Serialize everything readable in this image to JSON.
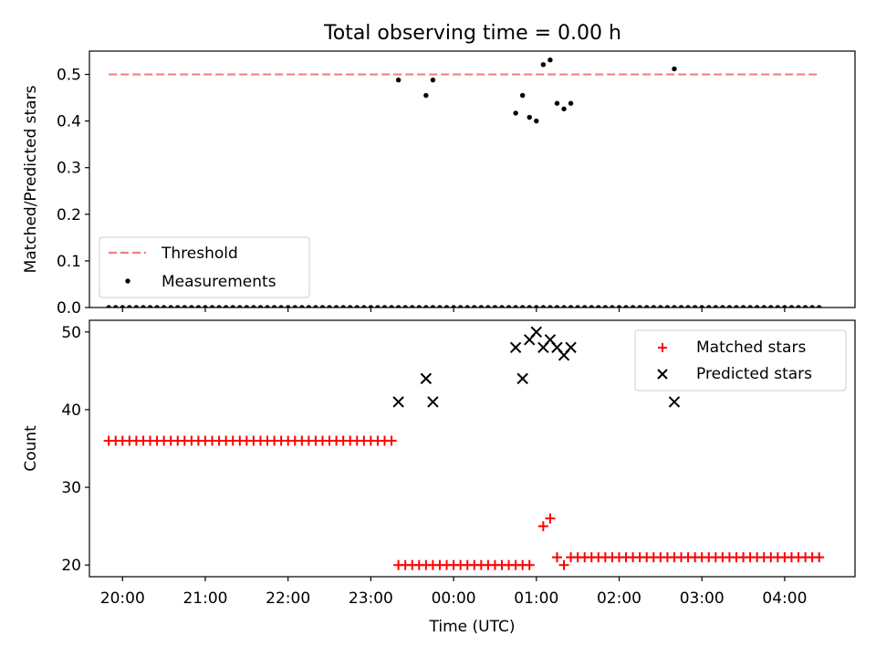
{
  "figure": {
    "title": "Total observing time = 0.00 h"
  },
  "chart_data": [
    {
      "type": "scatter",
      "ylabel": "Matched/Predicted stars",
      "xlabel": "",
      "xlim": [
        "19:36",
        "04:51"
      ],
      "ylim": [
        0.0,
        0.55
      ],
      "yticks": [
        "0.0",
        "0.1",
        "0.2",
        "0.3",
        "0.4",
        "0.5"
      ],
      "grid": false,
      "legend": "lower-left",
      "series": [
        {
          "name": "Threshold",
          "style": "dashed-line",
          "color": "#f08080",
          "x": [
            "19:50",
            "04:25"
          ],
          "y": [
            0.5,
            0.5
          ]
        },
        {
          "name": "Measurements",
          "style": "dot",
          "color": "#000000",
          "x": [
            "19:50",
            "19:55",
            "20:00",
            "20:05",
            "20:10",
            "20:15",
            "20:20",
            "20:25",
            "20:30",
            "20:35",
            "20:40",
            "20:45",
            "20:50",
            "20:55",
            "21:00",
            "21:05",
            "21:10",
            "21:15",
            "21:20",
            "21:25",
            "21:30",
            "21:35",
            "21:40",
            "21:45",
            "21:50",
            "21:55",
            "22:00",
            "22:05",
            "22:10",
            "22:15",
            "22:20",
            "22:25",
            "22:30",
            "22:35",
            "22:40",
            "22:45",
            "22:50",
            "22:55",
            "23:00",
            "23:05",
            "23:10",
            "23:15",
            "23:20",
            "23:25",
            "23:30",
            "23:35",
            "23:40",
            "23:45",
            "23:50",
            "23:55",
            "00:00",
            "00:05",
            "00:10",
            "00:15",
            "00:20",
            "00:25",
            "00:30",
            "00:35",
            "00:40",
            "00:45",
            "00:50",
            "00:55",
            "01:00",
            "01:05",
            "01:10",
            "01:15",
            "01:20",
            "01:25",
            "01:30",
            "01:35",
            "01:40",
            "01:45",
            "01:50",
            "01:55",
            "02:00",
            "02:05",
            "02:10",
            "02:15",
            "02:20",
            "02:25",
            "02:30",
            "02:35",
            "02:40",
            "02:45",
            "02:50",
            "02:55",
            "03:00",
            "03:05",
            "03:10",
            "03:15",
            "03:20",
            "03:25",
            "03:30",
            "03:35",
            "03:40",
            "03:45",
            "03:50",
            "03:55",
            "04:00",
            "04:05",
            "04:10",
            "04:15",
            "04:20",
            "04:25",
            "23:20",
            "23:40",
            "23:45",
            "00:45",
            "00:50",
            "00:55",
            "01:00",
            "01:05",
            "01:10",
            "01:15",
            "01:20",
            "01:25",
            "02:40"
          ],
          "y": [
            0,
            0,
            0,
            0,
            0,
            0,
            0,
            0,
            0,
            0,
            0,
            0,
            0,
            0,
            0,
            0,
            0,
            0,
            0,
            0,
            0,
            0,
            0,
            0,
            0,
            0,
            0,
            0,
            0,
            0,
            0,
            0,
            0,
            0,
            0,
            0,
            0,
            0,
            0,
            0,
            0,
            0,
            0,
            0,
            0,
            0,
            0,
            0,
            0,
            0,
            0,
            0,
            0,
            0,
            0,
            0,
            0,
            0,
            0,
            0,
            0,
            0,
            0,
            0,
            0,
            0,
            0,
            0,
            0,
            0,
            0,
            0,
            0,
            0,
            0,
            0,
            0,
            0,
            0,
            0,
            0,
            0,
            0,
            0,
            0,
            0,
            0,
            0,
            0,
            0,
            0,
            0,
            0,
            0,
            0,
            0,
            0,
            0,
            0,
            0,
            0,
            0,
            0,
            0,
            0.488,
            0.455,
            0.488,
            0.417,
            0.455,
            0.408,
            0.4,
            0.521,
            0.531,
            0.438,
            0.426,
            0.438,
            0.512
          ]
        }
      ]
    },
    {
      "type": "scatter",
      "ylabel": "Count",
      "xlabel": "Time (UTC)",
      "xlim": [
        "19:36",
        "04:51"
      ],
      "ylim": [
        18.5,
        51.5
      ],
      "yticks": [
        "20",
        "30",
        "40",
        "50"
      ],
      "xticks": [
        "20:00",
        "21:00",
        "22:00",
        "23:00",
        "00:00",
        "01:00",
        "02:00",
        "03:00",
        "04:00"
      ],
      "grid": false,
      "legend": "top-right",
      "series": [
        {
          "name": "Matched stars",
          "marker": "plus",
          "color": "#ff0000",
          "x": [
            "19:50",
            "19:55",
            "20:00",
            "20:05",
            "20:10",
            "20:15",
            "20:20",
            "20:25",
            "20:30",
            "20:35",
            "20:40",
            "20:45",
            "20:50",
            "20:55",
            "21:00",
            "21:05",
            "21:10",
            "21:15",
            "21:20",
            "21:25",
            "21:30",
            "21:35",
            "21:40",
            "21:45",
            "21:50",
            "21:55",
            "22:00",
            "22:05",
            "22:10",
            "22:15",
            "22:20",
            "22:25",
            "22:30",
            "22:35",
            "22:40",
            "22:45",
            "22:50",
            "22:55",
            "23:00",
            "23:05",
            "23:10",
            "23:15",
            "23:20",
            "23:25",
            "23:30",
            "23:35",
            "23:40",
            "23:45",
            "23:50",
            "23:55",
            "00:00",
            "00:05",
            "00:10",
            "00:15",
            "00:20",
            "00:25",
            "00:30",
            "00:35",
            "00:40",
            "00:45",
            "00:50",
            "00:55",
            "01:05",
            "01:10",
            "01:15",
            "01:20",
            "01:25",
            "01:30",
            "01:35",
            "01:40",
            "01:45",
            "01:50",
            "01:55",
            "02:00",
            "02:05",
            "02:10",
            "02:15",
            "02:20",
            "02:25",
            "02:30",
            "02:35",
            "02:40",
            "02:45",
            "02:50",
            "02:55",
            "03:00",
            "03:05",
            "03:10",
            "03:15",
            "03:20",
            "03:25",
            "03:30",
            "03:35",
            "03:40",
            "03:45",
            "03:50",
            "03:55",
            "04:00",
            "04:05",
            "04:10",
            "04:15",
            "04:20",
            "04:25"
          ],
          "y": [
            36,
            36,
            36,
            36,
            36,
            36,
            36,
            36,
            36,
            36,
            36,
            36,
            36,
            36,
            36,
            36,
            36,
            36,
            36,
            36,
            36,
            36,
            36,
            36,
            36,
            36,
            36,
            36,
            36,
            36,
            36,
            36,
            36,
            36,
            36,
            36,
            36,
            36,
            36,
            36,
            36,
            36,
            20,
            20,
            20,
            20,
            20,
            20,
            20,
            20,
            20,
            20,
            20,
            20,
            20,
            20,
            20,
            20,
            20,
            20,
            20,
            20,
            25,
            26,
            21,
            20,
            21,
            21,
            21,
            21,
            21,
            21,
            21,
            21,
            21,
            21,
            21,
            21,
            21,
            21,
            21,
            21,
            21,
            21,
            21,
            21,
            21,
            21,
            21,
            21,
            21,
            21,
            21,
            21,
            21,
            21,
            21,
            21,
            21,
            21,
            21,
            21,
            21
          ]
        },
        {
          "name": "Predicted stars",
          "marker": "x",
          "color": "#000000",
          "x": [
            "23:20",
            "23:40",
            "23:45",
            "00:45",
            "00:50",
            "00:55",
            "01:00",
            "01:05",
            "01:10",
            "01:15",
            "01:20",
            "01:25",
            "02:40"
          ],
          "y": [
            41,
            44,
            41,
            48,
            44,
            49,
            50,
            48,
            49,
            48,
            47,
            48,
            41
          ]
        }
      ]
    }
  ]
}
